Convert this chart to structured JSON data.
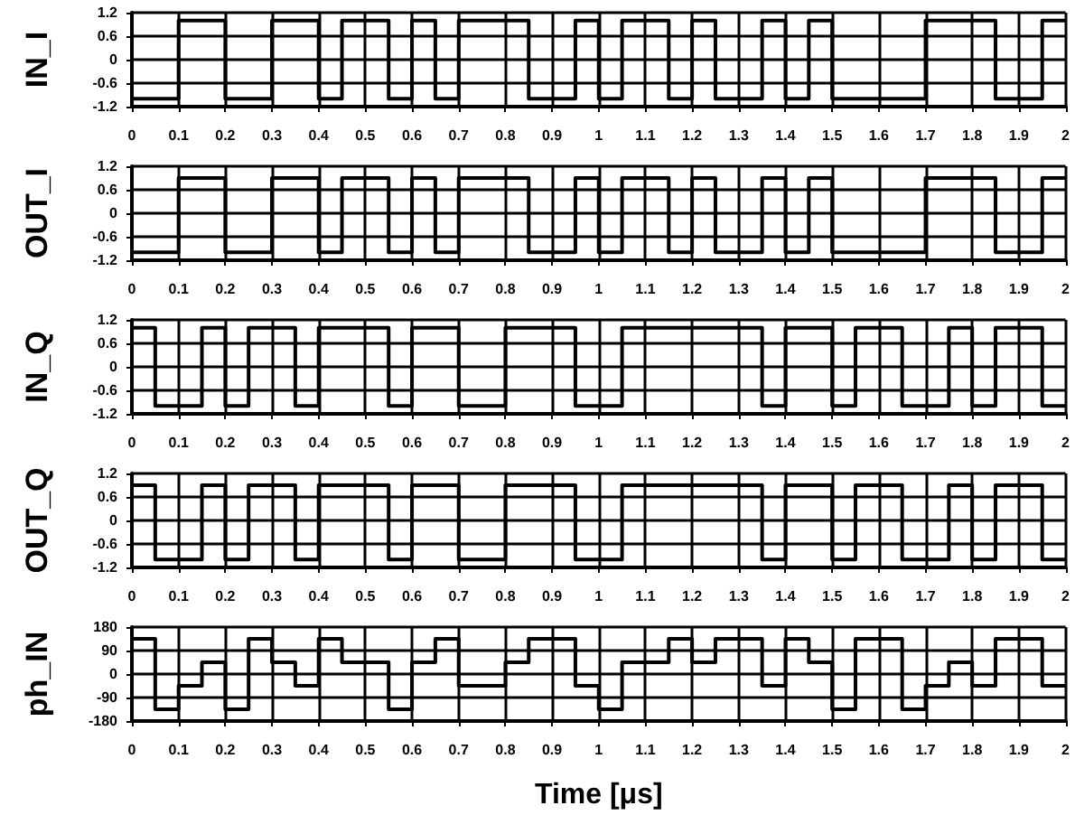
{
  "chart_data": [
    {
      "type": "step",
      "ylabel": "IN_I",
      "x": [
        0,
        0.05,
        0.1,
        0.15,
        0.2,
        0.25,
        0.3,
        0.35,
        0.4,
        0.45,
        0.5,
        0.55,
        0.6,
        0.65,
        0.7,
        0.75,
        0.8,
        0.85,
        0.9,
        0.95,
        1,
        1.05,
        1.1,
        1.15,
        1.2,
        1.25,
        1.3,
        1.35,
        1.4,
        1.45,
        1.5,
        1.55,
        1.6,
        1.65,
        1.7,
        1.75,
        1.8,
        1.85,
        1.9,
        1.95,
        2
      ],
      "color": "#000000",
      "values": [
        -1,
        -1,
        1,
        1,
        -1,
        -1,
        1,
        1,
        -1,
        1,
        1,
        -1,
        1,
        -1,
        1,
        1,
        1,
        -1,
        -1,
        1,
        -1,
        1,
        1,
        -1,
        1,
        -1,
        -1,
        1,
        -1,
        1,
        -1,
        -1,
        -1,
        -1,
        1,
        1,
        1,
        -1,
        -1,
        1,
        1
      ],
      "xlim": [
        0,
        2
      ],
      "xticks": [
        0,
        0.1,
        0.2,
        0.3,
        0.4,
        0.5,
        0.6,
        0.7,
        0.8,
        0.9,
        1,
        1.1,
        1.2,
        1.3,
        1.4,
        1.5,
        1.6,
        1.7,
        1.8,
        1.9,
        2
      ],
      "ylim": [
        -1.2,
        1.2
      ],
      "yticks": [
        -1.2,
        -0.6,
        0,
        0.6,
        1.2
      ],
      "grid": true
    },
    {
      "type": "step",
      "ylabel": "OUT_I",
      "x": [
        0,
        0.05,
        0.1,
        0.15,
        0.2,
        0.25,
        0.3,
        0.35,
        0.4,
        0.45,
        0.5,
        0.55,
        0.6,
        0.65,
        0.7,
        0.75,
        0.8,
        0.85,
        0.9,
        0.95,
        1,
        1.05,
        1.1,
        1.15,
        1.2,
        1.25,
        1.3,
        1.35,
        1.4,
        1.45,
        1.5,
        1.55,
        1.6,
        1.65,
        1.7,
        1.75,
        1.8,
        1.85,
        1.9,
        1.95,
        2
      ],
      "color": "#000000",
      "values": [
        -1,
        -1,
        0.9,
        0.9,
        -1,
        -1,
        0.9,
        0.9,
        -1,
        0.9,
        0.9,
        -1,
        0.9,
        -1,
        0.9,
        0.9,
        0.9,
        -1,
        -1,
        0.9,
        -1,
        0.9,
        0.9,
        -1,
        0.9,
        -1,
        -1,
        0.9,
        -1,
        0.9,
        -1,
        -1,
        -1,
        -1,
        0.9,
        0.9,
        0.9,
        -1,
        -1,
        0.9,
        0.9
      ],
      "xlim": [
        0,
        2
      ],
      "xticks": [
        0,
        0.1,
        0.2,
        0.3,
        0.4,
        0.5,
        0.6,
        0.7,
        0.8,
        0.9,
        1,
        1.1,
        1.2,
        1.3,
        1.4,
        1.5,
        1.6,
        1.7,
        1.8,
        1.9,
        2
      ],
      "ylim": [
        -1.2,
        1.2
      ],
      "yticks": [
        -1.2,
        -0.6,
        0,
        0.6,
        1.2
      ],
      "grid": true
    },
    {
      "type": "step",
      "ylabel": "IN_Q",
      "x": [
        0,
        0.05,
        0.1,
        0.15,
        0.2,
        0.25,
        0.3,
        0.35,
        0.4,
        0.45,
        0.5,
        0.55,
        0.6,
        0.65,
        0.7,
        0.75,
        0.8,
        0.85,
        0.9,
        0.95,
        1,
        1.05,
        1.1,
        1.15,
        1.2,
        1.25,
        1.3,
        1.35,
        1.4,
        1.45,
        1.5,
        1.55,
        1.6,
        1.65,
        1.7,
        1.75,
        1.8,
        1.85,
        1.9,
        1.95,
        2
      ],
      "color": "#000000",
      "values": [
        1,
        -1,
        -1,
        1,
        -1,
        1,
        1,
        -1,
        1,
        1,
        1,
        -1,
        1,
        1,
        -1,
        -1,
        1,
        1,
        1,
        -1,
        -1,
        1,
        1,
        1,
        1,
        1,
        1,
        -1,
        1,
        1,
        -1,
        1,
        1,
        -1,
        -1,
        1,
        -1,
        1,
        1,
        -1,
        -1
      ],
      "xlim": [
        0,
        2
      ],
      "xticks": [
        0,
        0.1,
        0.2,
        0.3,
        0.4,
        0.5,
        0.6,
        0.7,
        0.8,
        0.9,
        1,
        1.1,
        1.2,
        1.3,
        1.4,
        1.5,
        1.6,
        1.7,
        1.8,
        1.9,
        2
      ],
      "ylim": [
        -1.2,
        1.2
      ],
      "yticks": [
        -1.2,
        -0.6,
        0,
        0.6,
        1.2
      ],
      "grid": true
    },
    {
      "type": "step",
      "ylabel": "OUT_Q",
      "x": [
        0,
        0.05,
        0.1,
        0.15,
        0.2,
        0.25,
        0.3,
        0.35,
        0.4,
        0.45,
        0.5,
        0.55,
        0.6,
        0.65,
        0.7,
        0.75,
        0.8,
        0.85,
        0.9,
        0.95,
        1,
        1.05,
        1.1,
        1.15,
        1.2,
        1.25,
        1.3,
        1.35,
        1.4,
        1.45,
        1.5,
        1.55,
        1.6,
        1.65,
        1.7,
        1.75,
        1.8,
        1.85,
        1.9,
        1.95,
        2
      ],
      "color": "#000000",
      "values": [
        0.9,
        -1,
        -1,
        0.9,
        -1,
        0.9,
        0.9,
        -1,
        0.9,
        0.9,
        0.9,
        -1,
        0.9,
        0.9,
        -1,
        -1,
        0.9,
        0.9,
        0.9,
        -1,
        -1,
        0.9,
        0.9,
        0.9,
        0.9,
        0.9,
        0.9,
        -1,
        0.9,
        0.9,
        -1,
        0.9,
        0.9,
        -1,
        -1,
        0.9,
        -1,
        0.9,
        0.9,
        -1,
        -1
      ],
      "xlim": [
        0,
        2
      ],
      "xticks": [
        0,
        0.1,
        0.2,
        0.3,
        0.4,
        0.5,
        0.6,
        0.7,
        0.8,
        0.9,
        1,
        1.1,
        1.2,
        1.3,
        1.4,
        1.5,
        1.6,
        1.7,
        1.8,
        1.9,
        2
      ],
      "ylim": [
        -1.2,
        1.2
      ],
      "yticks": [
        -1.2,
        -0.6,
        0,
        0.6,
        1.2
      ],
      "grid": true
    },
    {
      "type": "step",
      "ylabel": "ph_IN",
      "xlabel": "Time [μs]",
      "x": [
        0,
        0.05,
        0.1,
        0.15,
        0.2,
        0.25,
        0.3,
        0.35,
        0.4,
        0.45,
        0.5,
        0.55,
        0.6,
        0.65,
        0.7,
        0.75,
        0.8,
        0.85,
        0.9,
        0.95,
        1,
        1.05,
        1.1,
        1.15,
        1.2,
        1.25,
        1.3,
        1.35,
        1.4,
        1.45,
        1.5,
        1.55,
        1.6,
        1.65,
        1.7,
        1.75,
        1.8,
        1.85,
        1.9,
        1.95,
        2
      ],
      "color": "#000000",
      "values": [
        135,
        -135,
        -45,
        45,
        -135,
        135,
        45,
        -45,
        135,
        45,
        45,
        -135,
        45,
        135,
        -45,
        -45,
        45,
        135,
        135,
        -45,
        -135,
        45,
        45,
        135,
        45,
        135,
        135,
        -45,
        135,
        45,
        -135,
        135,
        135,
        -135,
        -45,
        45,
        -45,
        135,
        135,
        -45,
        -45
      ],
      "xlim": [
        0,
        2
      ],
      "xticks": [
        0,
        0.1,
        0.2,
        0.3,
        0.4,
        0.5,
        0.6,
        0.7,
        0.8,
        0.9,
        1,
        1.1,
        1.2,
        1.3,
        1.4,
        1.5,
        1.6,
        1.7,
        1.8,
        1.9,
        2
      ],
      "ylim": [
        -180,
        180
      ],
      "yticks": [
        -180,
        -90,
        0,
        90,
        180
      ],
      "grid": true
    }
  ]
}
